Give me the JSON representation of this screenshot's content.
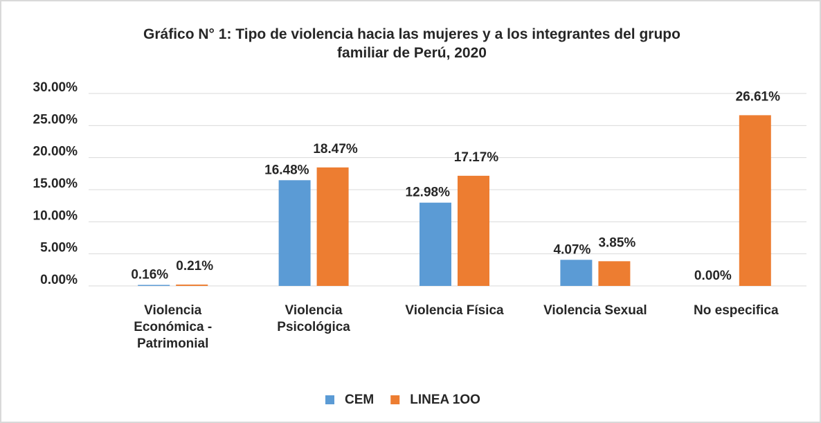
{
  "chart_data": {
    "type": "bar",
    "title": "Gráfico N° 1: Tipo de violencia hacia  las mujeres y a los integrantes del grupo familiar de Perú, 2020",
    "categories": [
      "Violencia Económica - Patrimonial",
      "Violencia Psicológica",
      "Violencia Física",
      "Violencia Sexual",
      "No especifica"
    ],
    "series": [
      {
        "name": "CEM",
        "color": "#5b9bd5",
        "values": [
          0.16,
          16.48,
          12.98,
          4.07,
          0
        ],
        "value_labels": [
          "0.16%",
          "16.48%",
          "12.98%",
          "4.07%",
          "0.00%"
        ]
      },
      {
        "name": "LINEA 1OO",
        "color": "#ed7d31",
        "values": [
          0.21,
          18.47,
          17.17,
          3.85,
          26.61
        ],
        "value_labels": [
          "0.21%",
          "18.47%",
          "17.17%",
          "3.85%",
          "26.61%"
        ]
      }
    ],
    "ylim": [
      0,
      30
    ],
    "yticks": [
      {
        "value": 0,
        "label": "0.00%"
      },
      {
        "value": 5,
        "label": "5.00%"
      },
      {
        "value": 10,
        "label": "10.00%"
      },
      {
        "value": 15,
        "label": "15.00%"
      },
      {
        "value": 20,
        "label": "20.00%"
      },
      {
        "value": 25,
        "label": "25.00%"
      },
      {
        "value": 30,
        "label": "30.00%"
      }
    ],
    "grid": true,
    "legend": "bottom"
  }
}
